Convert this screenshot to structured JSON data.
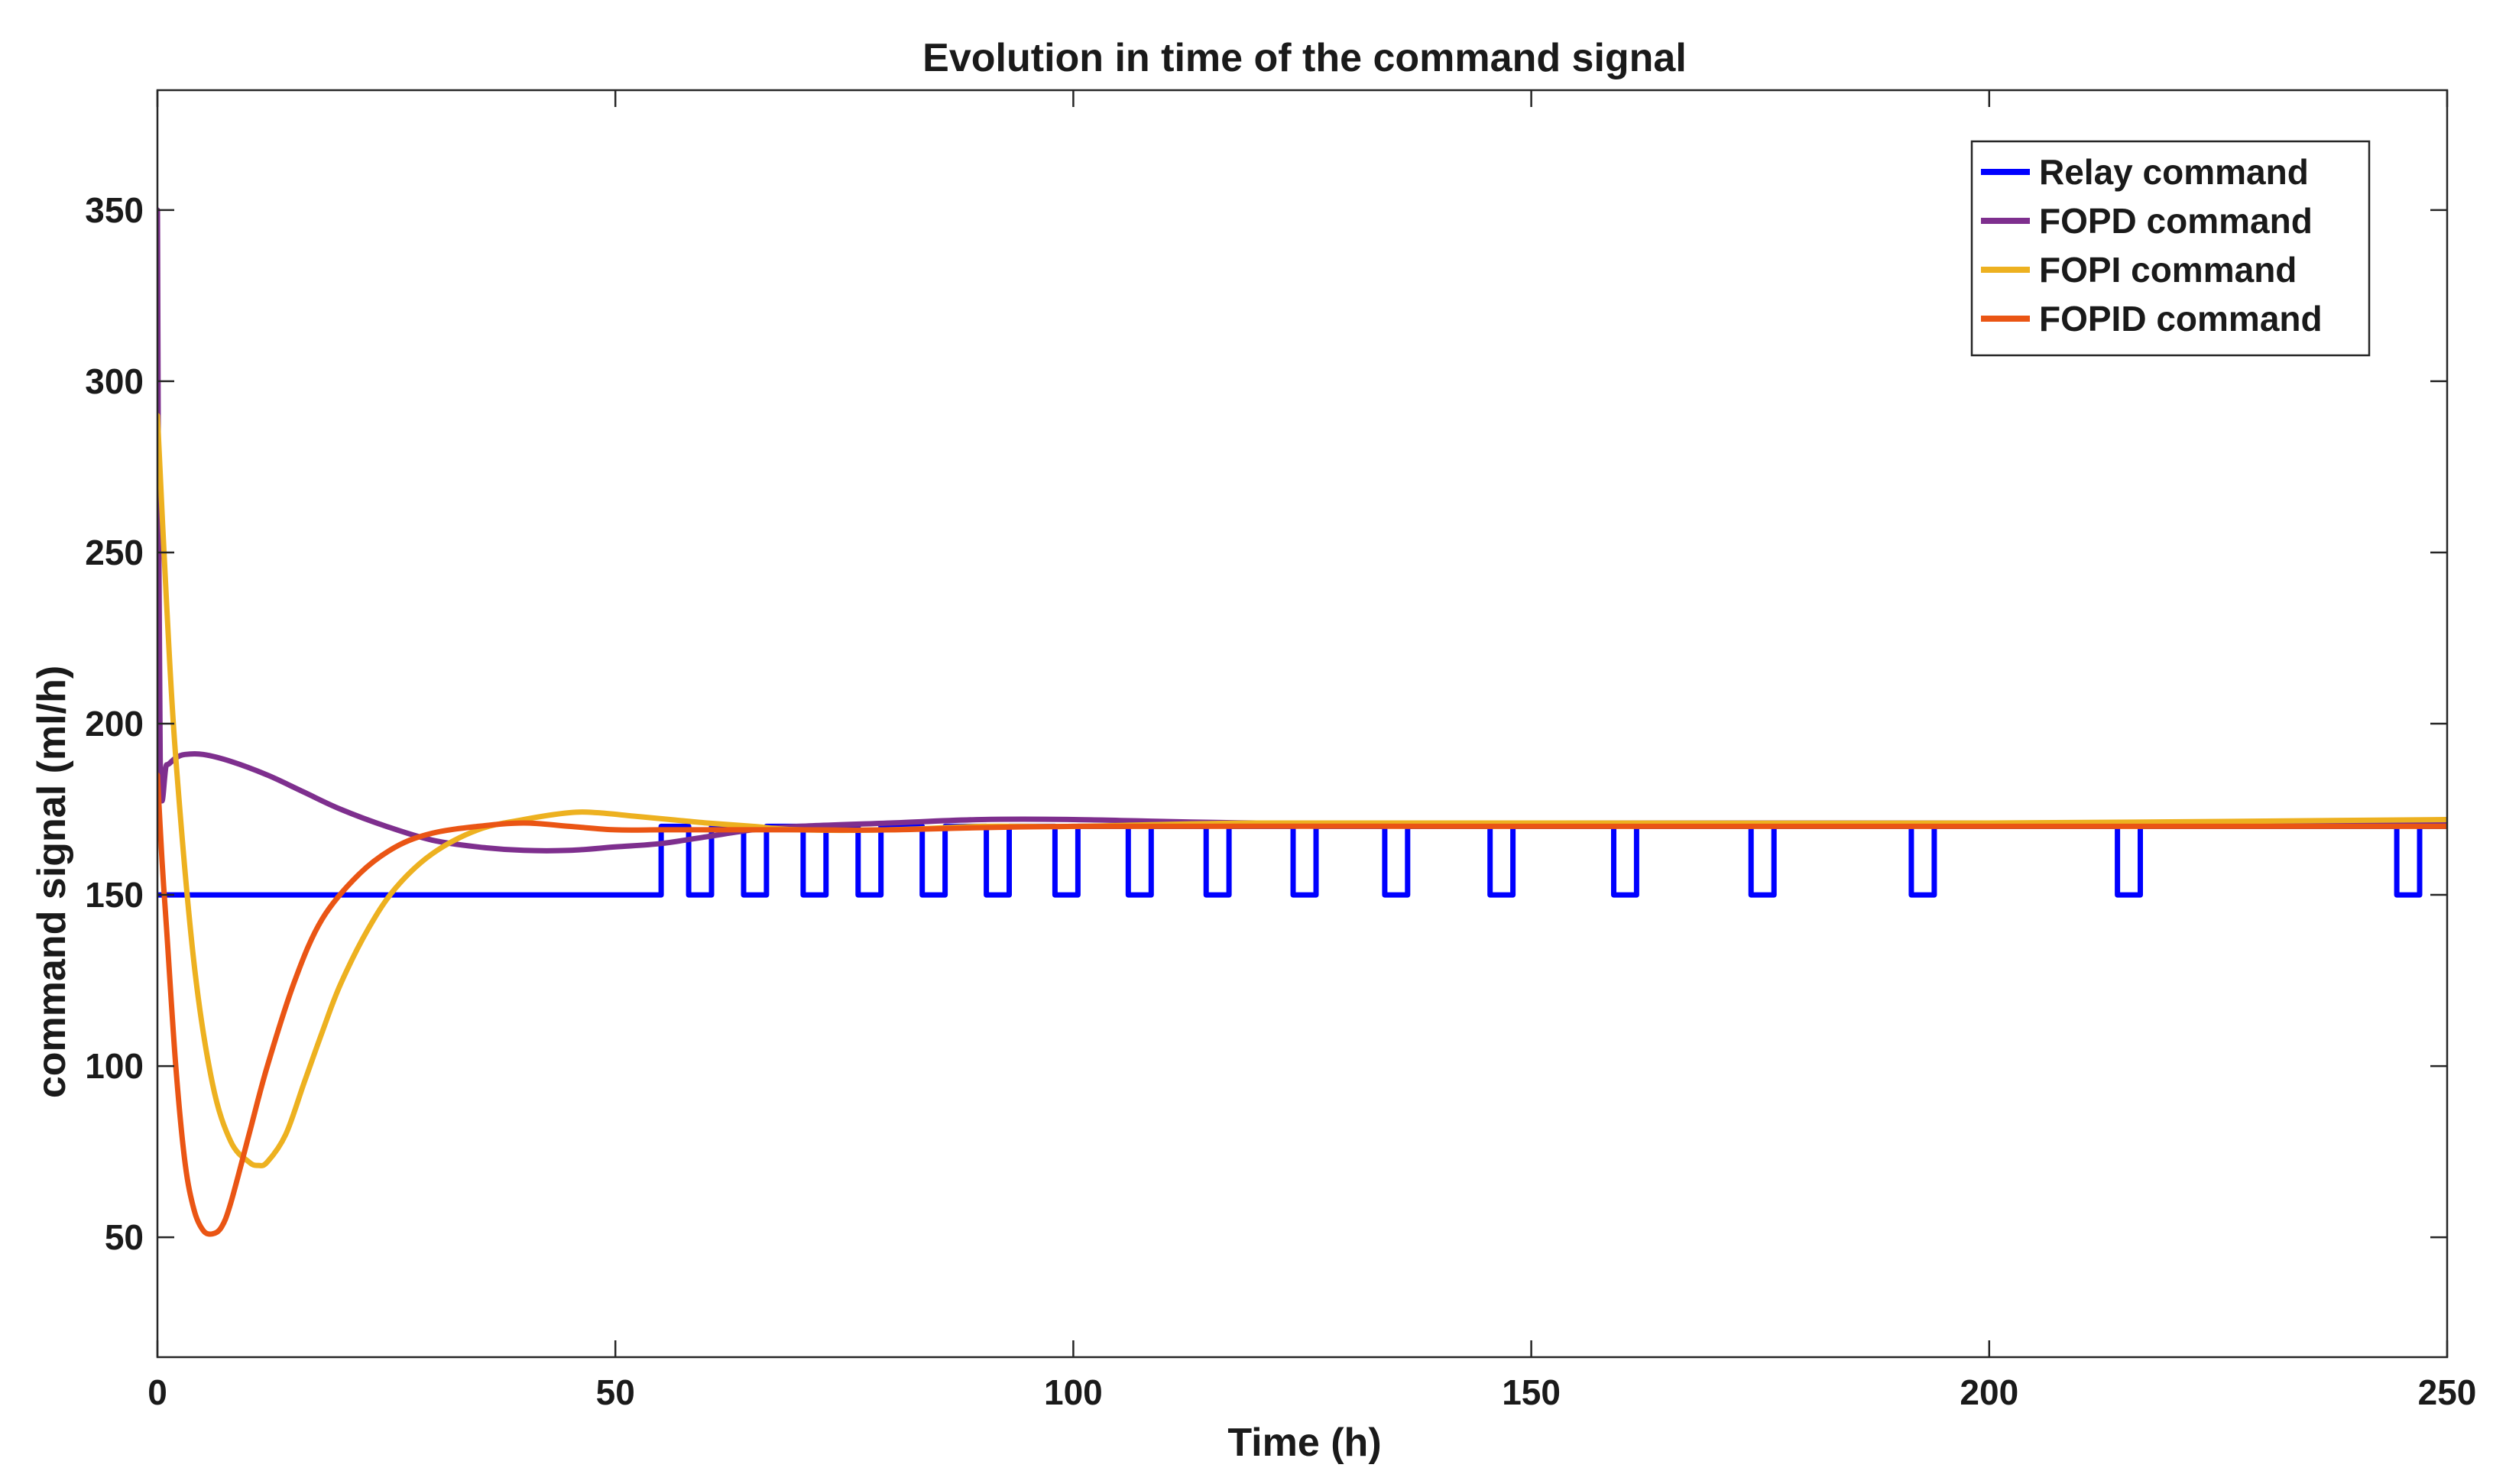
{
  "chart_data": {
    "type": "line",
    "title": "Evolution in time of the command signal",
    "xlabel": "Time (h)",
    "ylabel": "command signal (ml/h)",
    "xlim": [
      0,
      250
    ],
    "ylim": [
      15,
      385
    ],
    "xticks": [
      0,
      50,
      100,
      150,
      200,
      250
    ],
    "yticks": [
      50,
      100,
      150,
      200,
      250,
      300,
      350
    ],
    "grid": false,
    "legend_position": "top-right",
    "series": [
      {
        "name": "Relay command",
        "color": "#0000ff",
        "style": "step",
        "initial_value": 150,
        "x": [
          0,
          55.0,
          58.0,
          60.5,
          64.0,
          66.5,
          70.5,
          73.0,
          76.5,
          79.0,
          83.5,
          86.0,
          90.5,
          93.0,
          98.0,
          100.5,
          106.0,
          108.5,
          114.5,
          117.0,
          124.0,
          126.5,
          134.0,
          136.5,
          145.5,
          148.0,
          159.0,
          161.5,
          174.0,
          176.5,
          191.5,
          194.0,
          214.0,
          216.5,
          244.5,
          247.0,
          250
        ],
        "y": [
          150,
          170,
          150,
          170,
          150,
          170,
          150,
          170,
          150,
          170,
          150,
          170,
          150,
          170,
          150,
          170,
          150,
          170,
          150,
          170,
          150,
          170,
          150,
          170,
          150,
          170,
          150,
          170,
          150,
          170,
          150,
          170,
          150,
          170,
          150,
          170,
          170
        ]
      },
      {
        "name": "FOPD command",
        "color": "#7e2f8e",
        "style": "line",
        "x": [
          0,
          0.3,
          1,
          2,
          3,
          5,
          8,
          12,
          16,
          20,
          25,
          30,
          35,
          40,
          45,
          50,
          55,
          60,
          65,
          70,
          80,
          90,
          100,
          120,
          150,
          200,
          250
        ],
        "y": [
          350,
          190,
          188,
          190,
          191,
          191,
          189,
          185,
          180,
          175,
          170,
          166,
          164,
          163,
          163,
          164,
          165,
          167,
          169,
          170,
          171,
          172,
          172,
          171,
          171,
          171,
          171
        ]
      },
      {
        "name": "FOPI command",
        "color": "#edb120",
        "style": "line",
        "x": [
          0,
          1,
          2,
          4,
          6,
          8,
          10,
          11,
          12,
          14,
          16,
          18,
          20,
          23,
          26,
          30,
          35,
          40,
          45,
          48,
          52,
          56,
          60,
          65,
          70,
          80,
          90,
          100,
          120,
          150,
          200,
          250
        ],
        "y": [
          290,
          235,
          190,
          130,
          95,
          78,
          72,
          71,
          72,
          80,
          95,
          110,
          124,
          140,
          152,
          162,
          169,
          172,
          174,
          174,
          173,
          172,
          171,
          170,
          169,
          169,
          170,
          170,
          171,
          171,
          171,
          172
        ]
      },
      {
        "name": "FOPID command",
        "color": "#ea5514",
        "style": "line",
        "x": [
          0,
          0.5,
          1,
          2,
          3,
          4,
          5,
          6,
          7,
          8,
          10,
          12,
          15,
          18,
          22,
          26,
          30,
          35,
          40,
          45,
          50,
          55,
          60,
          70,
          80,
          100,
          150,
          200,
          250
        ],
        "y": [
          185,
          160,
          140,
          100,
          72,
          58,
          52,
          51,
          53,
          60,
          80,
          100,
          125,
          143,
          156,
          164,
          168,
          170,
          171,
          170,
          169,
          169,
          169,
          169,
          169,
          170,
          170,
          170,
          170
        ]
      }
    ]
  }
}
